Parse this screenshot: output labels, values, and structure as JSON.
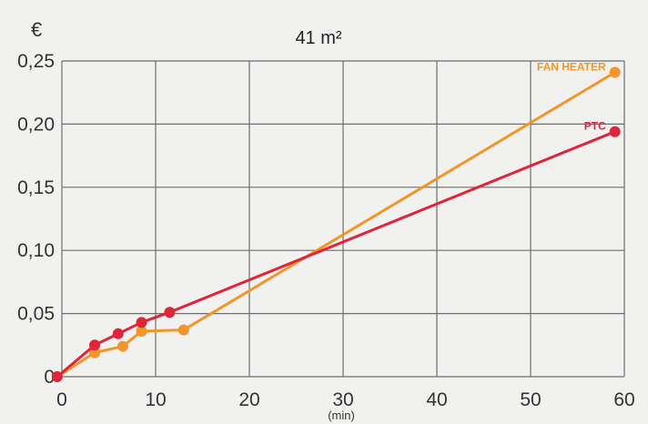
{
  "chart_data": {
    "type": "line",
    "title": "41 m²",
    "ylabel": "€",
    "xlabel": "(min)",
    "xlim": [
      0,
      60
    ],
    "ylim": [
      0,
      0.25
    ],
    "x_ticks": [
      0,
      10,
      20,
      30,
      40,
      50,
      60
    ],
    "x_tick_labels": [
      "0",
      "10",
      "20",
      "30",
      "40",
      "50",
      "60"
    ],
    "y_ticks": [
      0,
      0.05,
      0.1,
      0.15,
      0.2,
      0.25
    ],
    "y_tick_labels": [
      "0",
      "0,05",
      "0,10",
      "0,15",
      "0,20",
      "0,25"
    ],
    "grid": true,
    "series": [
      {
        "name": "FAN HEATER",
        "color": "#f0962a",
        "x": [
          -0.5,
          3.5,
          6.5,
          8.5,
          13,
          59
        ],
        "y": [
          0,
          0.019,
          0.024,
          0.036,
          0.037,
          0.241
        ]
      },
      {
        "name": "PTC",
        "color": "#e0253a",
        "x": [
          -0.5,
          3.5,
          6,
          8.5,
          11.5,
          59
        ],
        "y": [
          0,
          0.025,
          0.034,
          0.043,
          0.051,
          0.194
        ]
      }
    ]
  }
}
